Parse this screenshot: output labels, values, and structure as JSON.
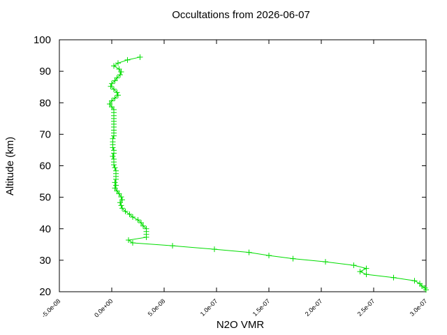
{
  "chart_data": {
    "type": "line",
    "title": "Occultations from 2026-06-07",
    "x_label": "N2O VMR",
    "y_label": "Altitude (km)",
    "color": "#00dd00",
    "xlim": [
      -5e-08,
      3e-07
    ],
    "xticks": [
      {
        "value": -5e-08,
        "label": "-5.0e-08"
      },
      {
        "value": 0,
        "label": "0.0e+00"
      },
      {
        "value": 5e-08,
        "label": "5.0e-08"
      },
      {
        "value": 1e-07,
        "label": "1.0e-07"
      },
      {
        "value": 1.5e-07,
        "label": "1.5e-07"
      },
      {
        "value": 2e-07,
        "label": "2.0e-07"
      },
      {
        "value": 2.5e-07,
        "label": "2.5e-07"
      },
      {
        "value": 3e-07,
        "label": "3.0e-07"
      }
    ],
    "ylim": [
      20,
      100
    ],
    "yticks": [
      20,
      30,
      40,
      50,
      60,
      70,
      80,
      90,
      100
    ],
    "x": [
      2.7e-08,
      1.5e-08,
      6e-09,
      2e-09,
      7e-09,
      9e-09,
      8e-09,
      5e-09,
      3e-09,
      0.0,
      -1e-09,
      2e-09,
      5e-09,
      6e-09,
      3e-09,
      0.0,
      -2e-09,
      0.0,
      2e-09,
      2e-09,
      2e-09,
      2e-09,
      2e-09,
      2e-09,
      2e-09,
      2e-09,
      2e-09,
      2e-09,
      1e-09,
      1e-09,
      1e-09,
      1e-09,
      2e-09,
      2e-09,
      1e-09,
      2e-09,
      2e-09,
      2e-09,
      3e-09,
      4e-09,
      4e-09,
      4e-09,
      4e-09,
      3e-09,
      4e-09,
      3e-09,
      5e-09,
      7e-09,
      9e-09,
      1e-08,
      8e-09,
      9e-09,
      1e-08,
      1.3e-08,
      1.7e-08,
      2e-08,
      2.5e-08,
      2.8e-08,
      3e-08,
      3.3e-08,
      3.3e-08,
      3.3e-08,
      3.3e-08,
      1.6e-08,
      2e-08,
      5.8e-08,
      9.8e-08,
      1.31e-07,
      1.5e-07,
      1.73e-07,
      2.04e-07,
      2.31e-07,
      2.43e-07,
      2.37e-07,
      2.43e-07,
      2.69e-07,
      2.89e-07,
      2.94e-07,
      2.96e-07,
      2.99e-07,
      3e-07
    ],
    "values": [
      94.5,
      93.6,
      92.6,
      91.7,
      90.7,
      89.8,
      88.9,
      87.9,
      87.0,
      86.1,
      85.2,
      84.3,
      83.3,
      82.4,
      81.5,
      80.6,
      79.6,
      78.7,
      77.8,
      76.9,
      75.9,
      75.0,
      74.1,
      73.2,
      72.3,
      71.3,
      70.4,
      69.5,
      68.6,
      67.6,
      66.7,
      65.8,
      64.9,
      64.0,
      63.0,
      62.1,
      61.2,
      60.3,
      59.4,
      58.4,
      57.5,
      56.6,
      55.7,
      54.7,
      53.8,
      52.9,
      52.0,
      51.1,
      50.1,
      49.2,
      48.3,
      47.4,
      46.5,
      45.5,
      44.6,
      43.7,
      42.8,
      41.9,
      40.9,
      40.0,
      39.1,
      38.2,
      37.3,
      36.4,
      35.5,
      34.6,
      33.5,
      32.5,
      31.5,
      30.5,
      29.5,
      28.4,
      27.4,
      26.4,
      25.5,
      24.5,
      23.5,
      22.6,
      21.8,
      21.2,
      20.6
    ]
  }
}
